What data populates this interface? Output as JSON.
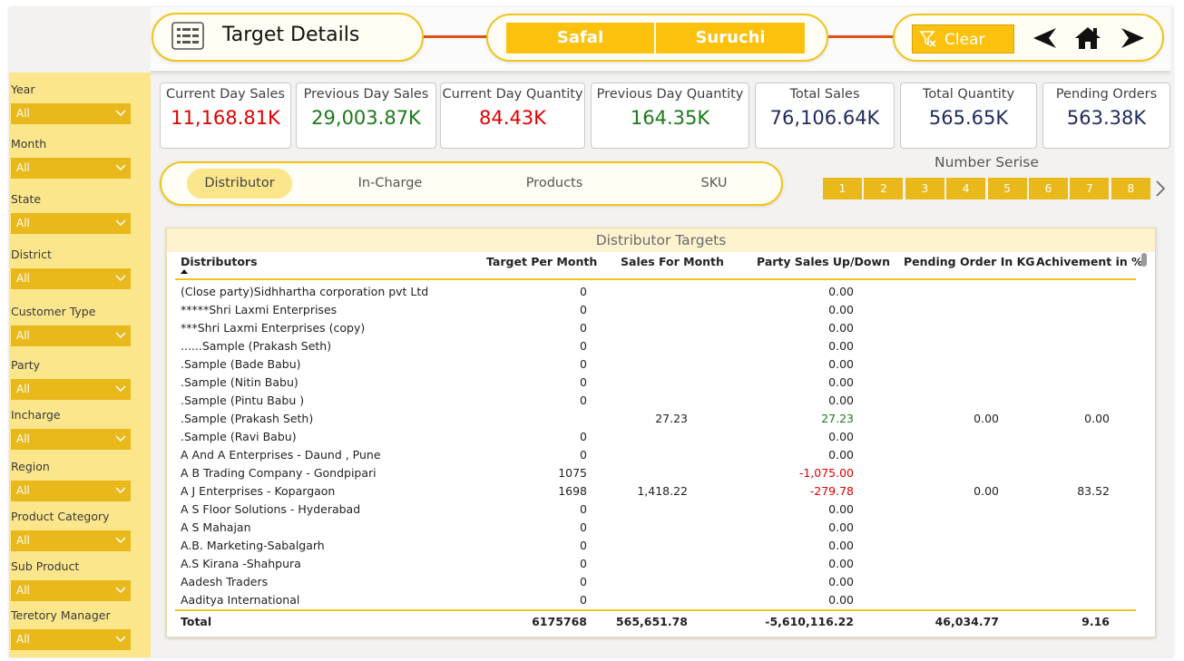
{
  "header": {
    "title": "Target Details",
    "brands": [
      "Safal",
      "Suruchi"
    ],
    "clear_label": "Clear"
  },
  "filters": [
    {
      "label": "Year",
      "value": "All"
    },
    {
      "label": "Month",
      "value": "All"
    },
    {
      "label": "State",
      "value": "All"
    },
    {
      "label": "District",
      "value": "All"
    },
    {
      "label": "Customer Type",
      "value": "All"
    },
    {
      "label": "Party",
      "value": "All"
    },
    {
      "label": "Incharge",
      "value": "All"
    },
    {
      "label": "Region",
      "value": "All"
    },
    {
      "label": "Product Category",
      "value": "All"
    },
    {
      "label": "Sub Product",
      "value": "All"
    },
    {
      "label": "Teretory Manager",
      "value": "All"
    }
  ],
  "kpis": [
    {
      "title": "Current Day Sales",
      "value": "11,168.81K",
      "color": "#e00000"
    },
    {
      "title": "Previous Day Sales",
      "value": "29,003.87K",
      "color": "#1a7a1a"
    },
    {
      "title": "Current Day Quantity",
      "value": "84.43K",
      "color": "#e00000"
    },
    {
      "title": "Previous Day Quantity",
      "value": "164.35K",
      "color": "#1a7a1a"
    },
    {
      "title": "Total Sales",
      "value": "76,106.64K",
      "color": "#1f2a5c"
    },
    {
      "title": "Total Quantity",
      "value": "565.65K",
      "color": "#1f2a5c"
    },
    {
      "title": "Pending Orders",
      "value": "563.38K",
      "color": "#1f2a5c"
    }
  ],
  "tabs": [
    "Distributor",
    "In-Charge",
    "Products",
    "SKU"
  ],
  "number_series": {
    "title": "Number Serise",
    "buttons": [
      "1",
      "2",
      "3",
      "4",
      "5",
      "6",
      "7",
      "8"
    ]
  },
  "table": {
    "title": "Distributor Targets",
    "columns": [
      "Distributors",
      "Target Per Month",
      "Sales For Month",
      "Party Sales Up/Down",
      "Pending Order In KG",
      "Achivement in %"
    ],
    "rows": [
      {
        "name": "(Close party)Sidhhartha corporation pvt Ltd",
        "tpm": "0",
        "sfm": "",
        "psud": "0.00",
        "po": "",
        "ach": ""
      },
      {
        "name": "*****Shri Laxmi Enterprises",
        "tpm": "0",
        "sfm": "",
        "psud": "0.00",
        "po": "",
        "ach": ""
      },
      {
        "name": "***Shri Laxmi Enterprises (copy)",
        "tpm": "0",
        "sfm": "",
        "psud": "0.00",
        "po": "",
        "ach": ""
      },
      {
        "name": "......Sample (Prakash Seth)",
        "tpm": "0",
        "sfm": "",
        "psud": "0.00",
        "po": "",
        "ach": ""
      },
      {
        "name": ".Sample (Bade Babu)",
        "tpm": "0",
        "sfm": "",
        "psud": "0.00",
        "po": "",
        "ach": ""
      },
      {
        "name": ".Sample (Nitin Babu)",
        "tpm": "0",
        "sfm": "",
        "psud": "0.00",
        "po": "",
        "ach": ""
      },
      {
        "name": ".Sample (Pintu Babu )",
        "tpm": "0",
        "sfm": "",
        "psud": "0.00",
        "po": "",
        "ach": ""
      },
      {
        "name": ".Sample (Prakash Seth)",
        "tpm": "",
        "sfm": "27.23",
        "psud": "27.23",
        "po": "0.00",
        "ach": "0.00"
      },
      {
        "name": ".Sample (Ravi Babu)",
        "tpm": "0",
        "sfm": "",
        "psud": "0.00",
        "po": "",
        "ach": ""
      },
      {
        "name": "A And A Enterprises - Daund , Pune",
        "tpm": "0",
        "sfm": "",
        "psud": "0.00",
        "po": "",
        "ach": ""
      },
      {
        "name": "A B Trading Company - Gondpipari",
        "tpm": "1075",
        "sfm": "",
        "psud": "-1,075.00",
        "po": "",
        "ach": ""
      },
      {
        "name": "A J Enterprises - Kopargaon",
        "tpm": "1698",
        "sfm": "1,418.22",
        "psud": "-279.78",
        "po": "0.00",
        "ach": "83.52"
      },
      {
        "name": "A S Floor Solutions - Hyderabad",
        "tpm": "0",
        "sfm": "",
        "psud": "0.00",
        "po": "",
        "ach": ""
      },
      {
        "name": "A S Mahajan",
        "tpm": "0",
        "sfm": "",
        "psud": "0.00",
        "po": "",
        "ach": ""
      },
      {
        "name": "A.B. Marketing-Sabalgarh",
        "tpm": "0",
        "sfm": "",
        "psud": "0.00",
        "po": "",
        "ach": ""
      },
      {
        "name": "A.S Kirana -Shahpura",
        "tpm": "0",
        "sfm": "",
        "psud": "0.00",
        "po": "",
        "ach": ""
      },
      {
        "name": "Aadesh Traders",
        "tpm": "0",
        "sfm": "",
        "psud": "0.00",
        "po": "",
        "ach": ""
      },
      {
        "name": "Aaditya International",
        "tpm": "0",
        "sfm": "",
        "psud": "0.00",
        "po": "",
        "ach": ""
      }
    ],
    "total": {
      "label": "Total",
      "tpm": "6175768",
      "sfm": "565,651.78",
      "psud": "-5,610,116.22",
      "po": "46,034.77",
      "ach": "9.16"
    }
  }
}
